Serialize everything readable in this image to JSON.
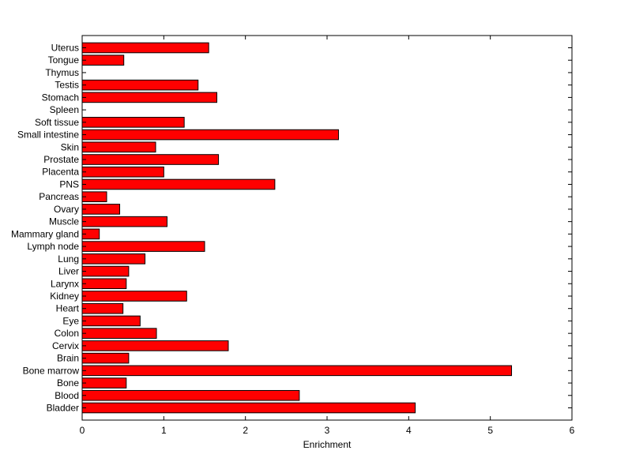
{
  "chart_data": {
    "type": "bar",
    "orientation": "horizontal",
    "title": "",
    "xlabel": "Enrichment",
    "ylabel": "",
    "xlim": [
      0,
      6
    ],
    "xticks": [
      "0",
      "1",
      "2",
      "3",
      "4",
      "5",
      "6"
    ],
    "grid": false,
    "legend": "none",
    "bar_color": "#ff0000",
    "bar_edge_color": "#000000",
    "categories": [
      "Bladder",
      "Blood",
      "Bone",
      "Bone marrow",
      "Brain",
      "Cervix",
      "Colon",
      "Eye",
      "Heart",
      "Kidney",
      "Larynx",
      "Liver",
      "Lung",
      "Lymph node",
      "Mammary gland",
      "Muscle",
      "Ovary",
      "Pancreas",
      "PNS",
      "Placenta",
      "Prostate",
      "Skin",
      "Small intestine",
      "Soft tissue",
      "Spleen",
      "Stomach",
      "Testis",
      "Thymus",
      "Tongue",
      "Uterus"
    ],
    "values": [
      4.08,
      2.66,
      0.54,
      5.26,
      0.57,
      1.79,
      0.91,
      0.71,
      0.5,
      1.28,
      0.54,
      0.57,
      0.77,
      1.5,
      0.21,
      1.04,
      0.46,
      0.3,
      2.36,
      1.0,
      1.67,
      0.9,
      3.14,
      1.25,
      0,
      1.65,
      1.42,
      0,
      0.51,
      1.55
    ]
  }
}
